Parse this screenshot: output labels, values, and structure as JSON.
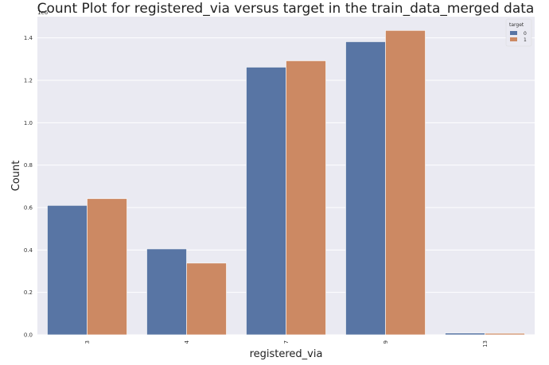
{
  "chart_data": {
    "type": "bar",
    "title": "Count Plot for registered_via versus target in the train_data_merged data",
    "xlabel": "registered_via",
    "ylabel": "Count",
    "y_offset_label": "1e6",
    "categories": [
      "3",
      "4",
      "7",
      "9",
      "13"
    ],
    "series": [
      {
        "name": "0",
        "values": [
          0.61,
          0.405,
          1.262,
          1.382,
          0.008
        ]
      },
      {
        "name": "1",
        "values": [
          0.642,
          0.338,
          1.292,
          1.435,
          0.007
        ]
      }
    ],
    "ylim": [
      0,
      1.5
    ],
    "yticks": [
      "0.0",
      "0.2",
      "0.4",
      "0.6",
      "0.8",
      "1.0",
      "1.2",
      "1.4"
    ],
    "legend_title": "target",
    "legend_position": "top-right",
    "grid": true,
    "colors": {
      "series_0": "#5875a4",
      "series_1": "#cc8963",
      "background": "#eaeaf2",
      "grid": "#ffffff"
    }
  }
}
